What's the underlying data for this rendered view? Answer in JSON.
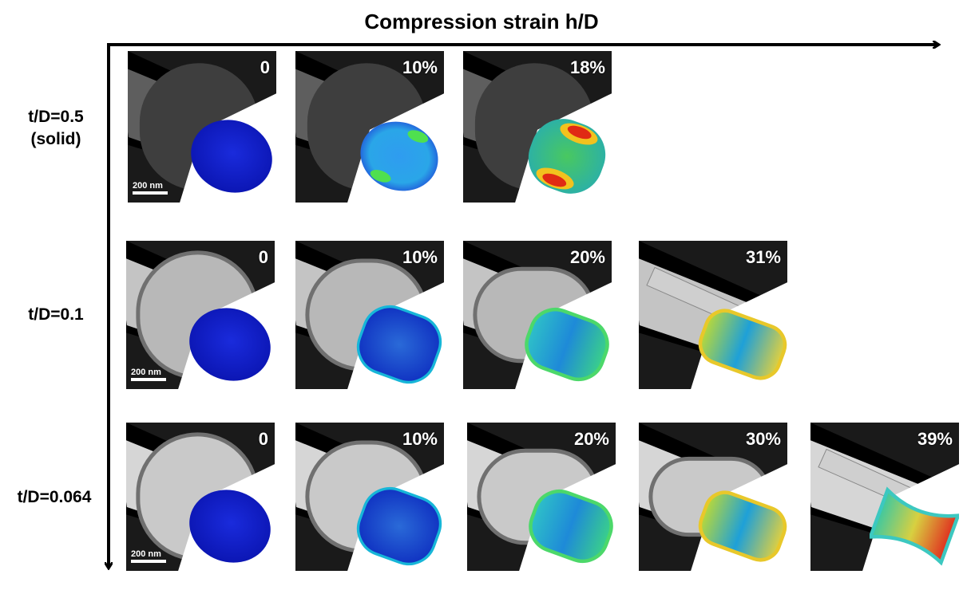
{
  "title": "Compression strain h/D",
  "scale_bar": "200 nm",
  "rows": [
    {
      "label_line1": "t/D=0.5",
      "label_line2": "(solid)",
      "strains": [
        "0",
        "10%",
        "18%"
      ]
    },
    {
      "label_line1": "t/D=0.1",
      "label_line2": "",
      "strains": [
        "0",
        "10%",
        "20%",
        "31%"
      ]
    },
    {
      "label_line1": "t/D=0.064",
      "label_line2": "",
      "strains": [
        "0",
        "10%",
        "20%",
        "30%",
        "39%"
      ]
    }
  ]
}
